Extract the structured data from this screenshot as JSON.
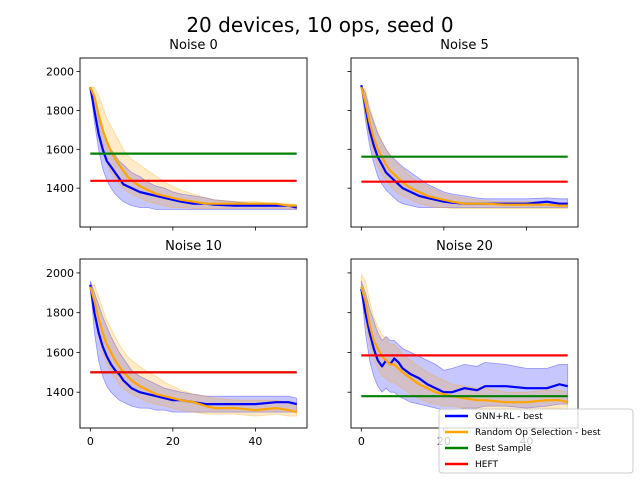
{
  "figure": {
    "title": "20 devices, 10 ops, seed 0",
    "legend": {
      "placement": "lower-right",
      "entries": [
        {
          "label": "GNN+RL - best",
          "color": "#0000ff"
        },
        {
          "label": "Random Op Selection - best",
          "color": "#ffa500"
        },
        {
          "label": "Best Sample",
          "color": "#008000"
        },
        {
          "label": "HEFT",
          "color": "#ff0000"
        }
      ]
    }
  },
  "chart_data": [
    {
      "type": "line",
      "title": "Noise 0",
      "xlim": [
        -2.5,
        52.5
      ],
      "ylim": [
        1200,
        2070
      ],
      "xticks": [
        0,
        20,
        40
      ],
      "yticks": [
        1400,
        1600,
        1800,
        2000
      ],
      "show_xticklabels": false,
      "show_yticklabels": true,
      "x": [
        0,
        1,
        2,
        3,
        4,
        5,
        6,
        7,
        8,
        9,
        10,
        12,
        14,
        16,
        18,
        20,
        22,
        25,
        28,
        30,
        35,
        40,
        45,
        48,
        50
      ],
      "series": [
        {
          "name": "GNN+RL - best",
          "color": "#0000ff",
          "values": [
            1920,
            1800,
            1680,
            1600,
            1540,
            1510,
            1480,
            1450,
            1420,
            1410,
            1400,
            1380,
            1370,
            1360,
            1350,
            1340,
            1330,
            1320,
            1320,
            1315,
            1310,
            1310,
            1310,
            1310,
            1300
          ],
          "lower": [
            1920,
            1740,
            1600,
            1500,
            1440,
            1400,
            1370,
            1350,
            1330,
            1320,
            1310,
            1300,
            1300,
            1290,
            1290,
            1290,
            1290,
            1290,
            1290,
            1290,
            1290,
            1290,
            1290,
            1290,
            1290
          ],
          "upper": [
            1920,
            1860,
            1760,
            1690,
            1640,
            1600,
            1570,
            1540,
            1520,
            1500,
            1480,
            1460,
            1430,
            1410,
            1400,
            1380,
            1370,
            1360,
            1350,
            1340,
            1330,
            1320,
            1320,
            1315,
            1310
          ]
        },
        {
          "name": "Random Op Selection - best",
          "color": "#ffa500",
          "values": [
            1920,
            1870,
            1780,
            1700,
            1640,
            1590,
            1550,
            1520,
            1490,
            1460,
            1440,
            1410,
            1390,
            1370,
            1360,
            1350,
            1340,
            1330,
            1320,
            1320,
            1320,
            1320,
            1320,
            1310,
            1310
          ],
          "lower": [
            1920,
            1800,
            1680,
            1590,
            1530,
            1480,
            1450,
            1420,
            1400,
            1380,
            1370,
            1350,
            1330,
            1320,
            1310,
            1300,
            1300,
            1295,
            1295,
            1295,
            1295,
            1295,
            1295,
            1295,
            1295
          ],
          "upper": [
            1920,
            1920,
            1880,
            1820,
            1760,
            1720,
            1680,
            1640,
            1600,
            1570,
            1550,
            1520,
            1490,
            1460,
            1430,
            1410,
            1390,
            1370,
            1350,
            1340,
            1330,
            1330,
            1320,
            1320,
            1315
          ]
        },
        {
          "name": "Best Sample",
          "color": "#008000",
          "values": [
            1578,
            1578
          ],
          "x": [
            0,
            50
          ]
        },
        {
          "name": "HEFT",
          "color": "#ff0000",
          "values": [
            1438,
            1438
          ],
          "x": [
            0,
            50
          ]
        }
      ]
    },
    {
      "type": "line",
      "title": "Noise 5",
      "xlim": [
        -2.5,
        52.5
      ],
      "ylim": [
        1200,
        2070
      ],
      "xticks": [
        0,
        20,
        40
      ],
      "yticks": [
        1400,
        1600,
        1800,
        2000
      ],
      "show_xticklabels": false,
      "show_yticklabels": false,
      "x": [
        0,
        1,
        2,
        3,
        4,
        5,
        6,
        7,
        8,
        9,
        10,
        12,
        14,
        16,
        18,
        20,
        22,
        25,
        28,
        30,
        35,
        40,
        45,
        48,
        50
      ],
      "series": [
        {
          "name": "GNN+RL - best",
          "color": "#0000ff",
          "values": [
            1930,
            1820,
            1700,
            1620,
            1560,
            1520,
            1480,
            1460,
            1440,
            1420,
            1400,
            1380,
            1360,
            1350,
            1340,
            1330,
            1325,
            1320,
            1320,
            1320,
            1320,
            1320,
            1330,
            1320,
            1320
          ],
          "lower": [
            1930,
            1750,
            1620,
            1530,
            1460,
            1420,
            1390,
            1370,
            1350,
            1330,
            1320,
            1310,
            1300,
            1300,
            1300,
            1300,
            1300,
            1300,
            1300,
            1300,
            1300,
            1300,
            1300,
            1300,
            1300
          ],
          "upper": [
            1930,
            1890,
            1800,
            1740,
            1680,
            1640,
            1600,
            1570,
            1550,
            1530,
            1510,
            1480,
            1450,
            1420,
            1400,
            1380,
            1370,
            1360,
            1350,
            1345,
            1345,
            1345,
            1350,
            1345,
            1345
          ]
        },
        {
          "name": "Random Op Selection - best",
          "color": "#ffa500",
          "values": [
            1920,
            1840,
            1740,
            1660,
            1600,
            1560,
            1520,
            1490,
            1470,
            1450,
            1430,
            1400,
            1380,
            1360,
            1350,
            1340,
            1330,
            1320,
            1320,
            1320,
            1315,
            1315,
            1315,
            1310,
            1310
          ],
          "lower": [
            1920,
            1770,
            1660,
            1570,
            1510,
            1470,
            1440,
            1410,
            1390,
            1370,
            1360,
            1340,
            1320,
            1310,
            1300,
            1300,
            1295,
            1295,
            1295,
            1295,
            1295,
            1295,
            1295,
            1295,
            1295
          ],
          "upper": [
            1920,
            1910,
            1820,
            1750,
            1690,
            1640,
            1600,
            1570,
            1540,
            1520,
            1500,
            1460,
            1430,
            1410,
            1390,
            1370,
            1360,
            1350,
            1340,
            1335,
            1330,
            1330,
            1330,
            1325,
            1325
          ]
        },
        {
          "name": "Best Sample",
          "color": "#008000",
          "values": [
            1562,
            1562
          ],
          "x": [
            0,
            50
          ]
        },
        {
          "name": "HEFT",
          "color": "#ff0000",
          "values": [
            1433,
            1433
          ],
          "x": [
            0,
            50
          ]
        }
      ]
    },
    {
      "type": "line",
      "title": "Noise 10",
      "xlim": [
        -2.5,
        52.5
      ],
      "ylim": [
        1220,
        2070
      ],
      "xticks": [
        0,
        20,
        40
      ],
      "yticks": [
        1400,
        1600,
        1800,
        2000
      ],
      "show_xticklabels": true,
      "show_yticklabels": true,
      "x": [
        0,
        1,
        2,
        3,
        4,
        5,
        6,
        7,
        8,
        9,
        10,
        12,
        14,
        16,
        18,
        20,
        22,
        25,
        28,
        30,
        35,
        40,
        45,
        48,
        50
      ],
      "series": [
        {
          "name": "GNN+RL - best",
          "color": "#0000ff",
          "values": [
            1940,
            1800,
            1700,
            1630,
            1580,
            1540,
            1510,
            1490,
            1460,
            1440,
            1420,
            1400,
            1390,
            1380,
            1370,
            1360,
            1360,
            1350,
            1340,
            1340,
            1340,
            1340,
            1350,
            1350,
            1340
          ],
          "lower": [
            1940,
            1700,
            1560,
            1480,
            1430,
            1400,
            1380,
            1360,
            1350,
            1340,
            1330,
            1320,
            1320,
            1310,
            1310,
            1300,
            1300,
            1300,
            1300,
            1300,
            1300,
            1300,
            1300,
            1300,
            1300
          ],
          "upper": [
            1960,
            1900,
            1840,
            1780,
            1730,
            1680,
            1640,
            1600,
            1570,
            1540,
            1510,
            1480,
            1460,
            1440,
            1420,
            1410,
            1400,
            1390,
            1380,
            1380,
            1380,
            1380,
            1380,
            1380,
            1370
          ]
        },
        {
          "name": "Random Op Selection - best",
          "color": "#ffa500",
          "values": [
            1930,
            1860,
            1770,
            1700,
            1640,
            1600,
            1560,
            1530,
            1500,
            1480,
            1460,
            1430,
            1410,
            1390,
            1380,
            1370,
            1360,
            1350,
            1330,
            1320,
            1320,
            1310,
            1320,
            1310,
            1300
          ],
          "lower": [
            1930,
            1780,
            1680,
            1600,
            1540,
            1500,
            1470,
            1440,
            1420,
            1400,
            1390,
            1370,
            1350,
            1340,
            1330,
            1320,
            1310,
            1300,
            1290,
            1290,
            1290,
            1280,
            1290,
            1280,
            1280
          ],
          "upper": [
            1940,
            1940,
            1880,
            1820,
            1760,
            1720,
            1680,
            1640,
            1610,
            1580,
            1560,
            1530,
            1500,
            1480,
            1450,
            1430,
            1410,
            1390,
            1380,
            1370,
            1360,
            1360,
            1360,
            1350,
            1340
          ]
        },
        {
          "name": "Best Sample",
          "color": "#008000",
          "values": [
            1500,
            1500
          ],
          "x": [
            0,
            50
          ]
        },
        {
          "name": "HEFT",
          "color": "#ff0000",
          "values": [
            1500,
            1500
          ],
          "x": [
            0,
            50
          ]
        }
      ]
    },
    {
      "type": "line",
      "title": "Noise 20",
      "xlim": [
        -2.5,
        52.5
      ],
      "ylim": [
        1220,
        2070
      ],
      "xticks": [
        0,
        20,
        40
      ],
      "yticks": [
        1400,
        1600,
        1800,
        2000
      ],
      "show_xticklabels": true,
      "show_yticklabels": false,
      "x": [
        0,
        1,
        2,
        3,
        4,
        5,
        6,
        7,
        8,
        9,
        10,
        12,
        14,
        16,
        18,
        20,
        22,
        25,
        28,
        30,
        35,
        40,
        45,
        48,
        50
      ],
      "series": [
        {
          "name": "GNN+RL - best",
          "color": "#0000ff",
          "values": [
            1920,
            1800,
            1700,
            1620,
            1560,
            1530,
            1560,
            1540,
            1570,
            1550,
            1520,
            1490,
            1470,
            1440,
            1420,
            1400,
            1400,
            1420,
            1410,
            1430,
            1430,
            1420,
            1420,
            1440,
            1430
          ],
          "lower": [
            1920,
            1700,
            1560,
            1480,
            1430,
            1400,
            1420,
            1400,
            1400,
            1380,
            1370,
            1350,
            1340,
            1330,
            1320,
            1310,
            1310,
            1320,
            1320,
            1330,
            1330,
            1320,
            1330,
            1340,
            1340
          ],
          "upper": [
            1960,
            1900,
            1820,
            1760,
            1700,
            1660,
            1680,
            1660,
            1660,
            1640,
            1620,
            1600,
            1580,
            1560,
            1540,
            1510,
            1520,
            1540,
            1530,
            1550,
            1540,
            1520,
            1520,
            1540,
            1540
          ]
        },
        {
          "name": "Random Op Selection - best",
          "color": "#ffa500",
          "values": [
            1930,
            1860,
            1740,
            1660,
            1620,
            1580,
            1560,
            1540,
            1540,
            1520,
            1500,
            1470,
            1440,
            1420,
            1400,
            1390,
            1380,
            1370,
            1360,
            1360,
            1350,
            1350,
            1360,
            1360,
            1350
          ],
          "lower": [
            1930,
            1760,
            1640,
            1570,
            1520,
            1480,
            1470,
            1450,
            1450,
            1430,
            1420,
            1390,
            1370,
            1350,
            1340,
            1330,
            1330,
            1320,
            1310,
            1310,
            1310,
            1310,
            1320,
            1320,
            1310
          ],
          "upper": [
            1990,
            1960,
            1860,
            1780,
            1730,
            1690,
            1670,
            1640,
            1640,
            1620,
            1590,
            1560,
            1530,
            1500,
            1480,
            1460,
            1440,
            1430,
            1420,
            1420,
            1400,
            1400,
            1410,
            1410,
            1400
          ]
        },
        {
          "name": "Best Sample",
          "color": "#008000",
          "values": [
            1380,
            1380
          ],
          "x": [
            0,
            50
          ]
        },
        {
          "name": "HEFT",
          "color": "#ff0000",
          "values": [
            1585,
            1585
          ],
          "x": [
            0,
            50
          ]
        }
      ]
    }
  ]
}
